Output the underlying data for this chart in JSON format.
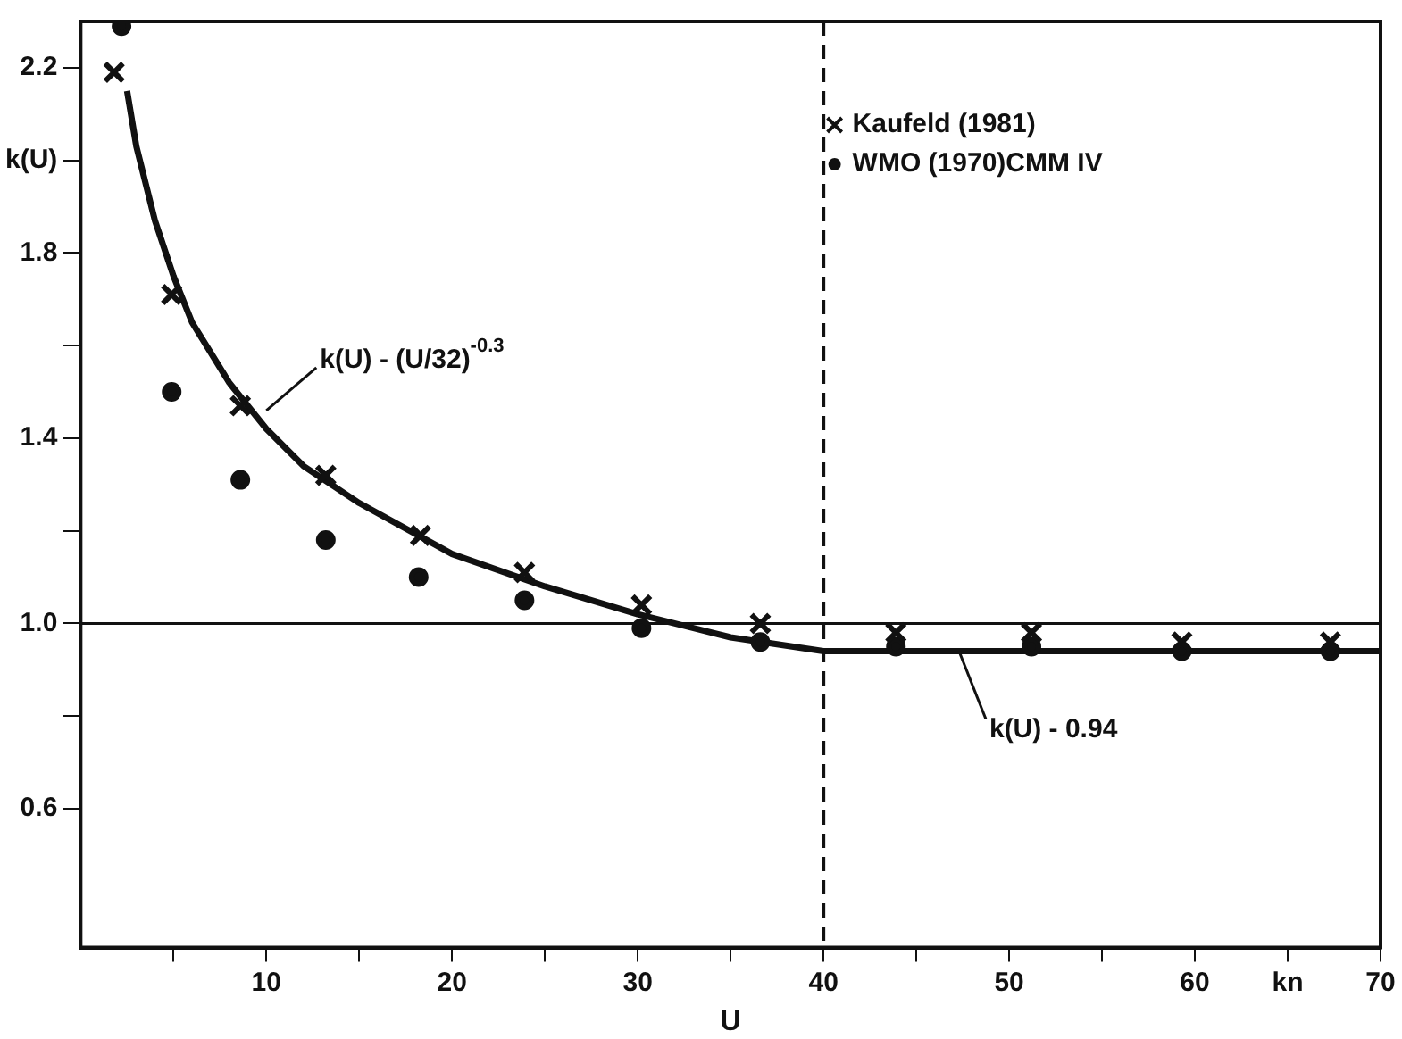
{
  "chart_data": {
    "type": "scatter",
    "xlabel": "U",
    "xlim": [
      0,
      70
    ],
    "ylim": [
      0.3,
      2.3
    ],
    "xticks": [
      {
        "value": 5,
        "label": null
      },
      10,
      {
        "value": 15,
        "label": null
      },
      20,
      {
        "value": 25,
        "label": null
      },
      30,
      {
        "value": 35,
        "label": null
      },
      40,
      {
        "value": 45,
        "label": null
      },
      50,
      {
        "value": 55,
        "label": null
      },
      60,
      {
        "value": 65,
        "label": "kn"
      },
      70
    ],
    "yticks": [
      {
        "value": 0.6,
        "label": "0.6"
      },
      {
        "value": 0.8,
        "label": null
      },
      {
        "value": 1.0,
        "label": "1.0"
      },
      {
        "value": 1.2,
        "label": null
      },
      {
        "value": 1.4,
        "label": "1.4"
      },
      {
        "value": 1.6,
        "label": null
      },
      {
        "value": 1.8,
        "label": "1.8"
      },
      {
        "value": 2.0,
        "label": "k(U)"
      },
      {
        "value": 2.2,
        "label": "2.2"
      }
    ],
    "grid": false,
    "legend": "top right",
    "series": [
      {
        "name": "Kaufeld (1981)",
        "marker": "cross",
        "color": "#111111",
        "x": [
          1.8,
          4.9,
          8.6,
          13.2,
          18.3,
          23.9,
          30.2,
          36.6,
          43.9,
          51.2,
          59.3,
          67.3
        ],
        "values": [
          2.19,
          1.71,
          1.47,
          1.32,
          1.19,
          1.11,
          1.04,
          1.0,
          0.98,
          0.98,
          0.96,
          0.96
        ]
      },
      {
        "name": "WMO (1970)CMM IV",
        "marker": "circle",
        "color": "#111111",
        "x": [
          2.2,
          4.9,
          8.6,
          13.2,
          18.2,
          23.9,
          30.2,
          36.6,
          43.9,
          51.2,
          59.3,
          67.3
        ],
        "values": [
          2.29,
          1.5,
          1.31,
          1.18,
          1.1,
          1.05,
          0.99,
          0.96,
          0.95,
          0.95,
          0.94,
          0.94
        ]
      },
      {
        "type": "line",
        "marker": "none",
        "line_style": "solid",
        "color": "#111111",
        "x": [
          2.5,
          3,
          4,
          5,
          6,
          8,
          10,
          12,
          15,
          20,
          25,
          30,
          35,
          40,
          45,
          50,
          60,
          70
        ],
        "values": [
          2.15,
          2.03,
          1.87,
          1.75,
          1.65,
          1.52,
          1.42,
          1.34,
          1.26,
          1.15,
          1.08,
          1.02,
          0.97,
          0.94,
          0.94,
          0.94,
          0.94,
          0.94
        ]
      }
    ],
    "ref_lines": [
      {
        "axis": "y",
        "value": 1.0,
        "line_style": "solid",
        "color": "#111111"
      },
      {
        "axis": "x",
        "value": 40,
        "line_style": "dashed",
        "color": "#111111"
      }
    ],
    "annotations": [
      {
        "text": "k(U) - (U/32)$^{-0.3}$",
        "x": 10,
        "y": 1.46
      },
      {
        "text": "k(U) - 0.94",
        "x": 47.3,
        "y": 0.94
      }
    ]
  }
}
